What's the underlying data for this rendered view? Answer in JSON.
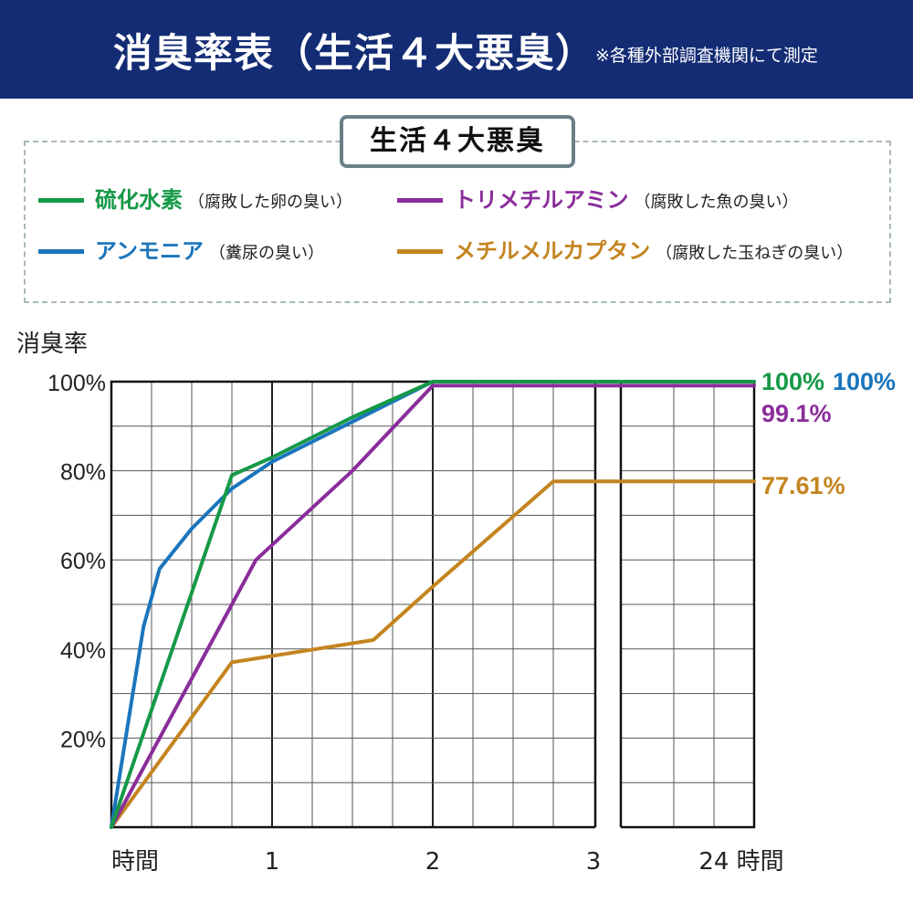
{
  "header": {
    "title": "消臭率表（生活４大悪臭）",
    "note": "※各種外部調査機関にて測定",
    "background": "#132c74"
  },
  "legend": {
    "title": "生活４大悪臭",
    "items": [
      {
        "name": "硫化水素",
        "desc": "（腐敗した卵の臭い）",
        "color": "#159947"
      },
      {
        "name": "トリメチルアミン",
        "desc": "（腐敗した魚の臭い）",
        "color": "#8a2d9b"
      },
      {
        "name": "アンモニア",
        "desc": "（糞尿の臭い）",
        "color": "#1a75bc"
      },
      {
        "name": "メチルメルカプタン",
        "desc": "（腐敗した玉ねぎの臭い）",
        "color": "#c4841f"
      }
    ]
  },
  "chart_data": {
    "type": "line",
    "ylabel": "消臭率",
    "xlabel": "時間",
    "y_ticks": [
      "100%",
      "80%",
      "60%",
      "40%",
      "20%"
    ],
    "x_ticks": [
      "1",
      "2",
      "3",
      "24 時間"
    ],
    "xlim": [
      0,
      4
    ],
    "ylim": [
      0,
      100
    ],
    "grid": true,
    "axis_break_after_x": 3,
    "series": [
      {
        "name": "硫化水素",
        "color": "#159947",
        "end_label": "100%",
        "points": [
          [
            0,
            0
          ],
          [
            0.75,
            79
          ],
          [
            1,
            83
          ],
          [
            1.5,
            92
          ],
          [
            2,
            100
          ],
          [
            4,
            100
          ]
        ]
      },
      {
        "name": "アンモニア",
        "color": "#1a75bc",
        "end_label": "100%",
        "points": [
          [
            0,
            0
          ],
          [
            0.2,
            45
          ],
          [
            0.3,
            58
          ],
          [
            0.5,
            67
          ],
          [
            0.75,
            76
          ],
          [
            1,
            82
          ],
          [
            1.5,
            91
          ],
          [
            2,
            100
          ],
          [
            4,
            100
          ]
        ]
      },
      {
        "name": "トリメチルアミン",
        "color": "#8a2d9b",
        "end_label": "99.1%",
        "points": [
          [
            0,
            0
          ],
          [
            0.75,
            50
          ],
          [
            0.9,
            60
          ],
          [
            1.5,
            80
          ],
          [
            2,
            99.1
          ],
          [
            4,
            99.1
          ]
        ]
      },
      {
        "name": "メチルメルカプタン",
        "color": "#c4841f",
        "end_label": "77.61%",
        "points": [
          [
            0,
            0
          ],
          [
            0.75,
            37
          ],
          [
            1.63,
            42
          ],
          [
            2,
            54
          ],
          [
            2.75,
            77.61
          ],
          [
            4,
            77.61
          ]
        ]
      }
    ]
  }
}
